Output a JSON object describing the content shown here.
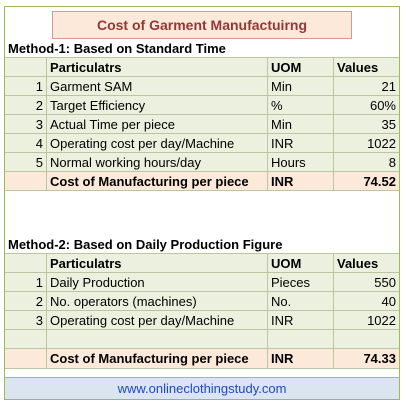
{
  "title": "Cost of Garment Manufactuirng",
  "method1": {
    "heading": "Method-1: Based on Standard Time",
    "headers": {
      "particulars": "Particulatrs",
      "uom": "UOM",
      "values": "Values"
    },
    "rows": [
      {
        "no": "1",
        "label": "Garment SAM",
        "uom": "Min",
        "value": "21"
      },
      {
        "no": "2",
        "label": "Target Efficiency",
        "uom": "%",
        "value": "60%"
      },
      {
        "no": "3",
        "label": "Actual Time per piece",
        "uom": "Min",
        "value": "35"
      },
      {
        "no": "4",
        "label": "Operating cost per day/Machine",
        "uom": "INR",
        "value": "1022"
      },
      {
        "no": "5",
        "label": "Normal working hours/day",
        "uom": "Hours",
        "value": "8"
      }
    ],
    "total": {
      "label": "Cost of Manufacturing per piece",
      "uom": "INR",
      "value": "74.52"
    }
  },
  "method2": {
    "heading": "Method-2: Based on Daily Production Figure",
    "headers": {
      "particulars": "Particulatrs",
      "uom": "UOM",
      "values": "Values"
    },
    "rows": [
      {
        "no": "1",
        "label": "Daily Production",
        "uom": "Pieces",
        "value": "550"
      },
      {
        "no": "2",
        "label": "No. operators (machines)",
        "uom": "No.",
        "value": "40"
      },
      {
        "no": "3",
        "label": "Operating cost per day/Machine",
        "uom": "INR",
        "value": "1022"
      }
    ],
    "total": {
      "label": "Cost of Manufacturing per piece",
      "uom": "INR",
      "value": "74.33"
    }
  },
  "footer": {
    "url": "www.onlineclothingstudy.com"
  },
  "colors": {
    "green_fill": "#ebf1de",
    "pink_fill": "#fde9d9",
    "title_text": "#953735",
    "footer_fill": "#dbe5f1",
    "link": "#1f49c7"
  }
}
